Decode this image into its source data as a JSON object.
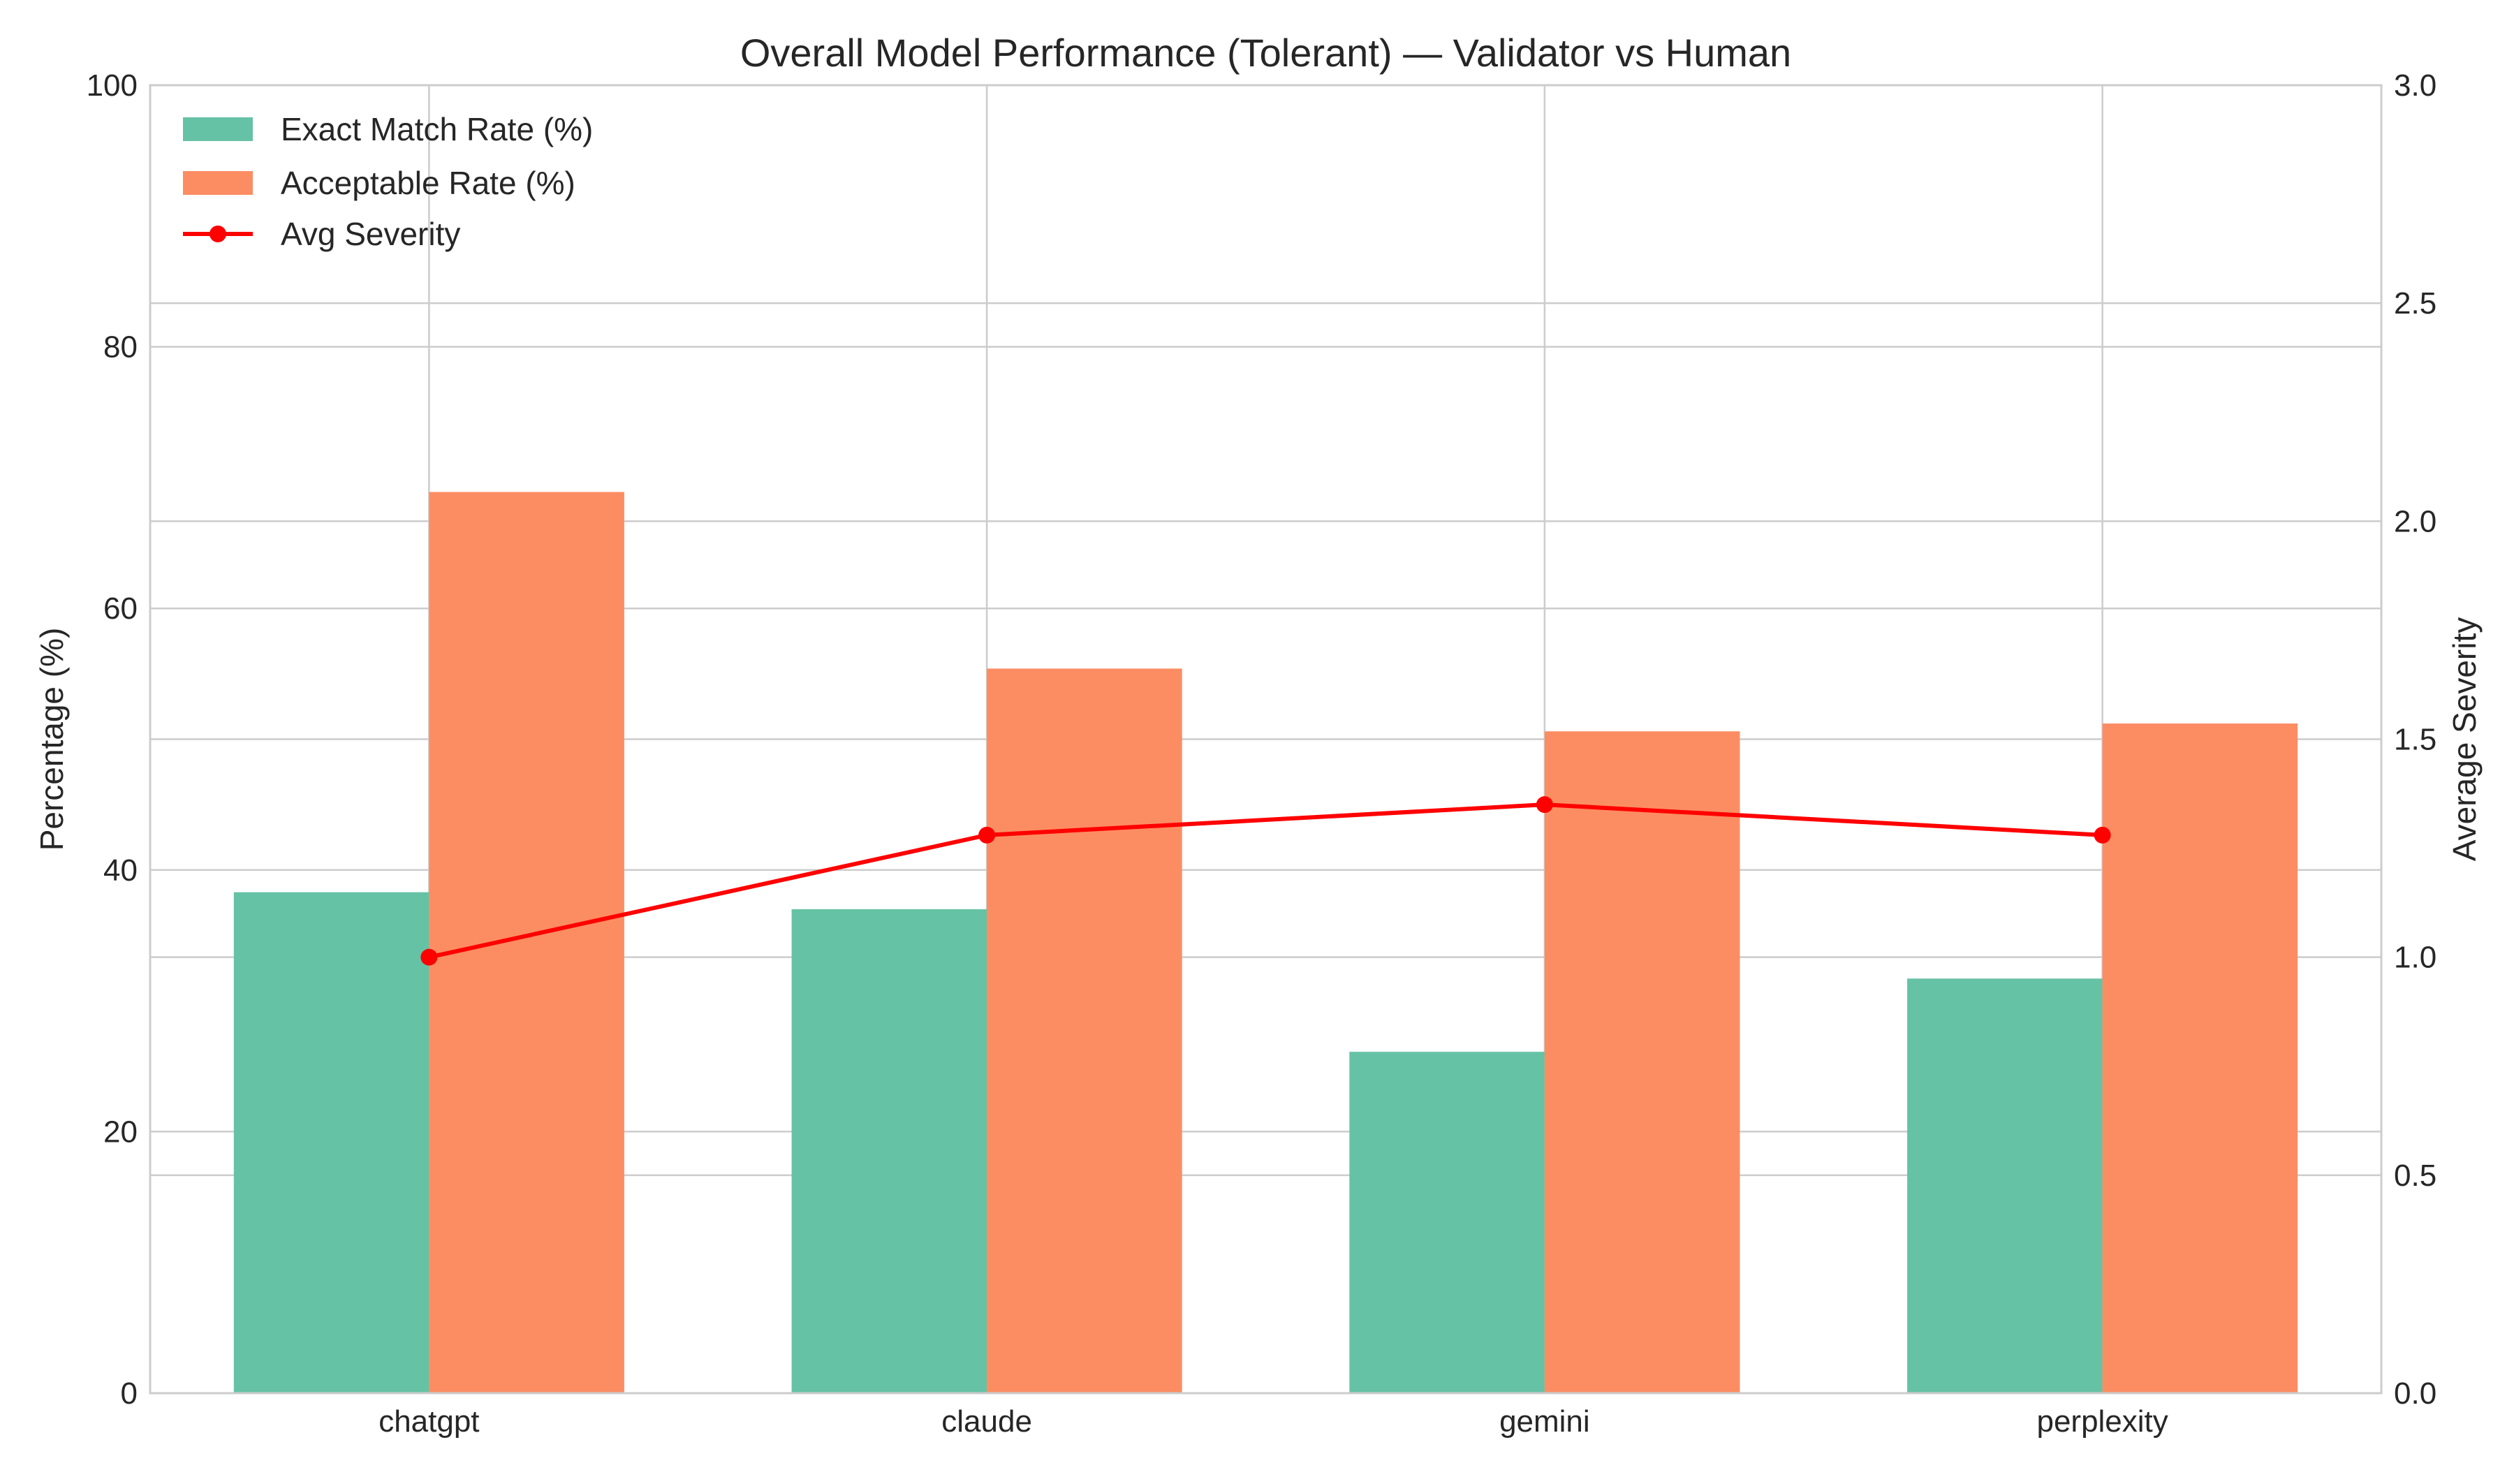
{
  "chart_data": {
    "type": "bar",
    "title": "Overall Model Performance (Tolerant) — Validator vs Human",
    "categories": [
      "chatgpt",
      "claude",
      "gemini",
      "perplexity"
    ],
    "series": [
      {
        "name": "Exact Match Rate (%)",
        "type": "bar",
        "axis": "left",
        "color": "#66c2a5",
        "values": [
          38.3,
          37.0,
          26.1,
          31.7
        ]
      },
      {
        "name": "Acceptable Rate (%)",
        "type": "bar",
        "axis": "left",
        "color": "#fc8d62",
        "values": [
          68.9,
          55.4,
          50.6,
          51.2
        ]
      },
      {
        "name": "Avg Severity",
        "type": "line",
        "axis": "right",
        "color": "#ff0000",
        "values": [
          1.0,
          1.28,
          1.35,
          1.28
        ]
      }
    ],
    "ylabel": "Percentage (%)",
    "ylabel_right": "Average Severity",
    "xlabel": "",
    "ylim": [
      0,
      100
    ],
    "ylim_right": [
      0,
      3.0
    ],
    "yticks": [
      "0",
      "20",
      "40",
      "60",
      "80",
      "100"
    ],
    "yticks_right": [
      "0.0",
      "0.5",
      "1.0",
      "1.5",
      "2.0",
      "2.5",
      "3.0"
    ],
    "grid": true,
    "legend_position": "top-left"
  }
}
